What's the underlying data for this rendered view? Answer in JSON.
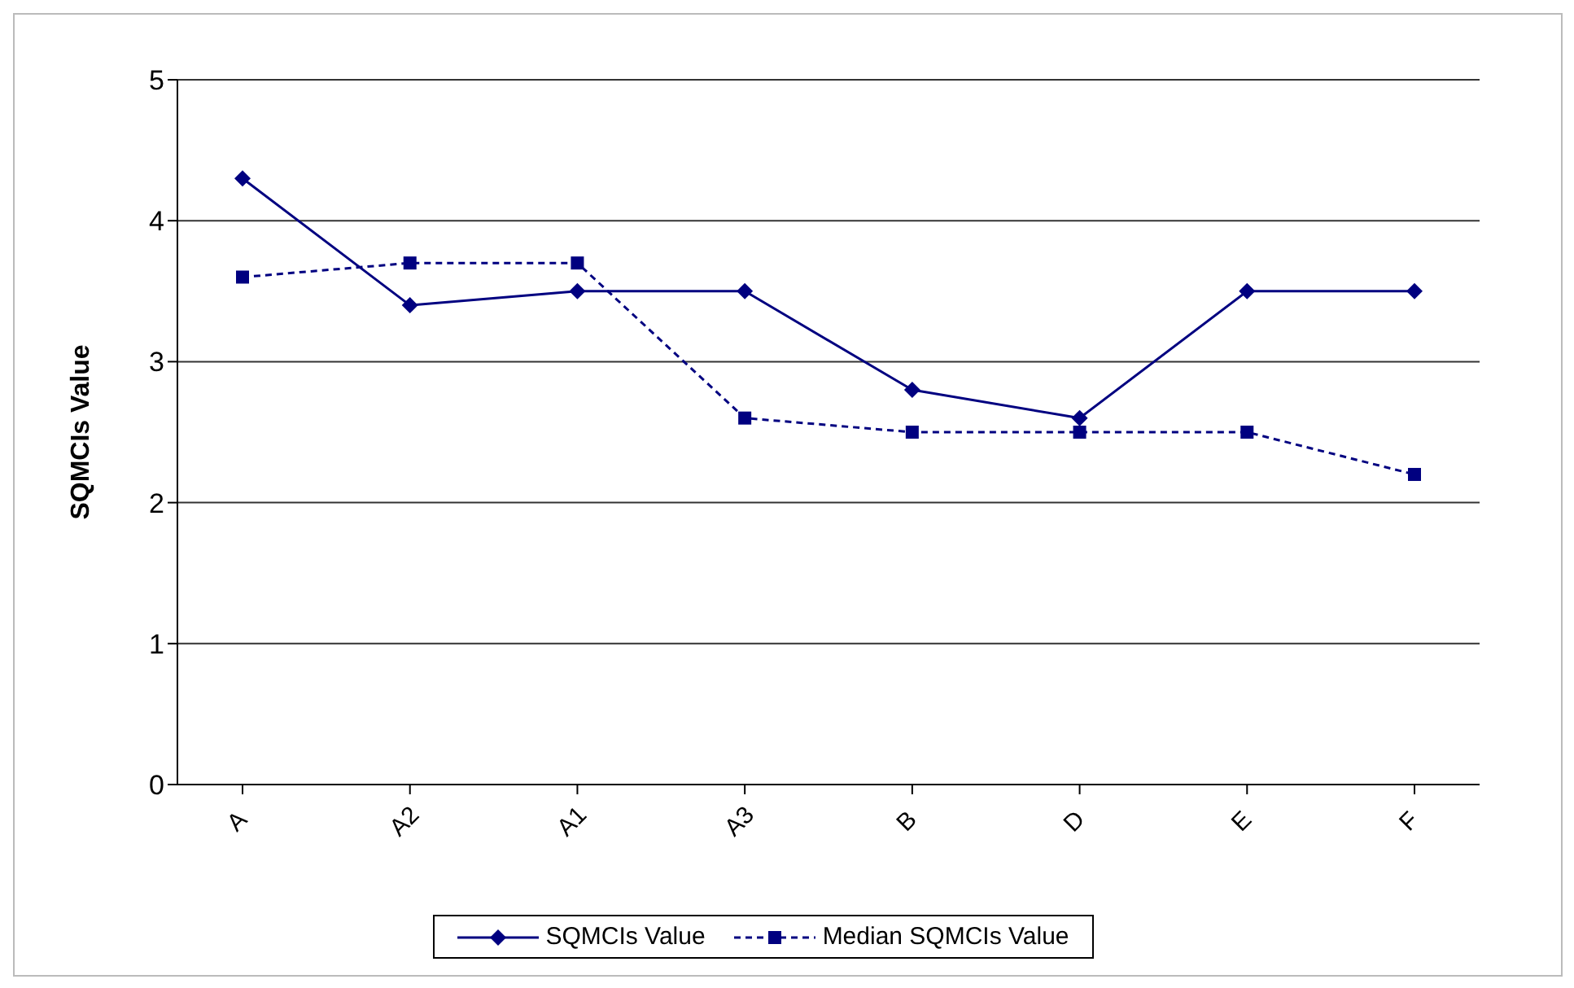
{
  "chart_data": {
    "type": "line",
    "ylabel": "SQMCIs Value",
    "categories": [
      "A",
      "A2",
      "A1",
      "A3",
      "B",
      "D",
      "E",
      "F"
    ],
    "series": [
      {
        "name": "SQMCIs Value",
        "color": "#000080",
        "marker": "diamond",
        "line_style": "solid",
        "values": [
          4.3,
          3.4,
          3.5,
          3.5,
          2.8,
          2.6,
          3.5,
          3.5
        ]
      },
      {
        "name": "Median SQMCIs Value",
        "color": "#000080",
        "marker": "square",
        "line_style": "dashed",
        "values": [
          3.6,
          3.7,
          3.7,
          2.6,
          2.5,
          2.5,
          2.5,
          2.2
        ]
      }
    ],
    "ylim": [
      0,
      5
    ],
    "yticks": [
      0,
      1,
      2,
      3,
      4,
      5
    ],
    "grid": "y",
    "legend": "bottom"
  }
}
